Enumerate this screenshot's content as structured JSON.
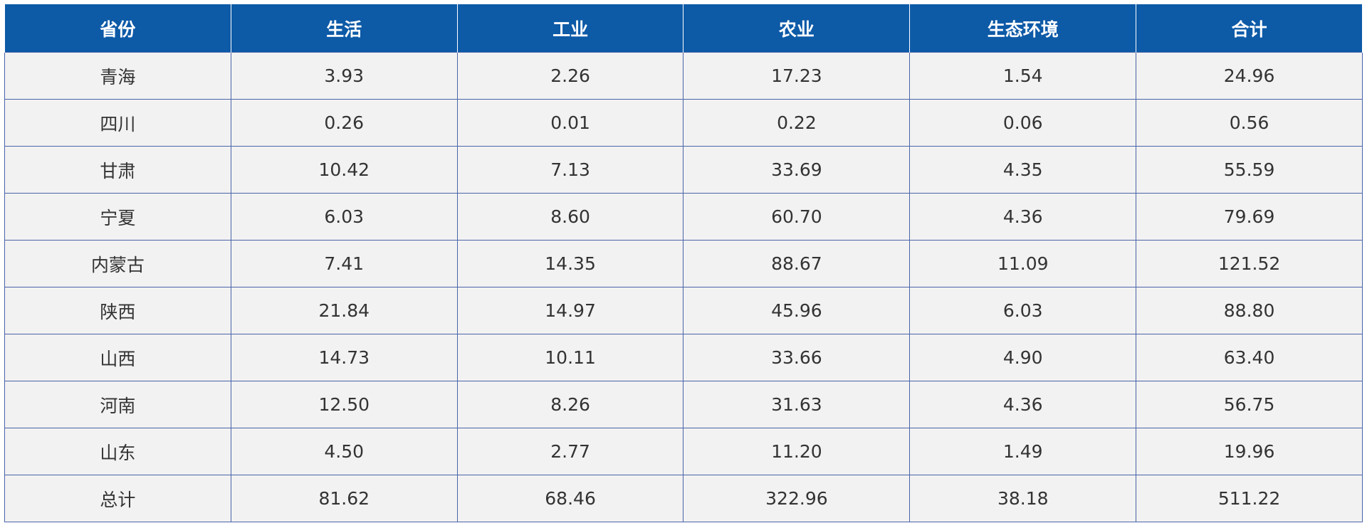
{
  "table": {
    "header": [
      "省份",
      "生活",
      "工业",
      "农业",
      "生态环境",
      "合计"
    ],
    "rows": [
      [
        "青海",
        "3.93",
        "2.26",
        "17.23",
        "1.54",
        "24.96"
      ],
      [
        "四川",
        "0.26",
        "0.01",
        "0.22",
        "0.06",
        "0.56"
      ],
      [
        "甘肃",
        "10.42",
        "7.13",
        "33.69",
        "4.35",
        "55.59"
      ],
      [
        "宁夏",
        "6.03",
        "8.60",
        "60.70",
        "4.36",
        "79.69"
      ],
      [
        "内蒙古",
        "7.41",
        "14.35",
        "88.67",
        "11.09",
        "121.52"
      ],
      [
        "陕西",
        "21.84",
        "14.97",
        "45.96",
        "6.03",
        "88.80"
      ],
      [
        "山西",
        "14.73",
        "10.11",
        "33.66",
        "4.90",
        "63.40"
      ],
      [
        "河南",
        "12.50",
        "8.26",
        "31.63",
        "4.36",
        "56.75"
      ],
      [
        "山东",
        "4.50",
        "2.77",
        "11.20",
        "1.49",
        "19.96"
      ],
      [
        "总计",
        "81.62",
        "68.46",
        "322.96",
        "38.18",
        "511.22"
      ]
    ]
  }
}
